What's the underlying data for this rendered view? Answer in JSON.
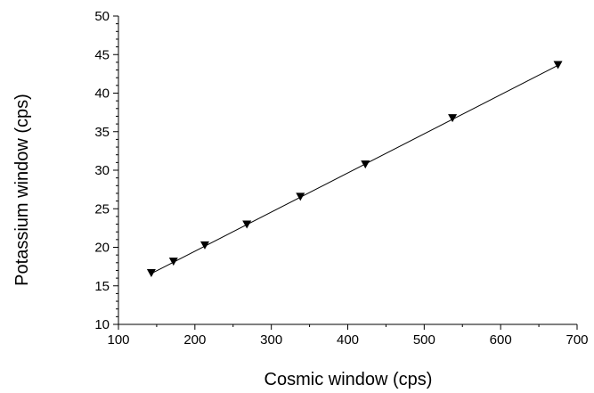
{
  "chart_data": {
    "type": "scatter",
    "xlabel": "Cosmic window (cps)",
    "ylabel": "Potassium window (cps)",
    "xlim": [
      100,
      700
    ],
    "ylim": [
      10,
      50
    ],
    "xticks": [
      "100",
      "200",
      "300",
      "400",
      "500",
      "600",
      "700"
    ],
    "yticks": [
      "10",
      "15",
      "20",
      "25",
      "30",
      "35",
      "40",
      "45",
      "50"
    ],
    "grid": false,
    "marker": "down-triangle",
    "series": [
      {
        "x": [
          143,
          172,
          213,
          268,
          338,
          423,
          537,
          675
        ],
        "y": [
          16.7,
          18.2,
          20.3,
          23.0,
          26.6,
          30.8,
          36.8,
          43.7
        ]
      }
    ],
    "fit_line": {
      "x": [
        143,
        675
      ],
      "y": [
        16.6,
        43.6
      ]
    }
  }
}
